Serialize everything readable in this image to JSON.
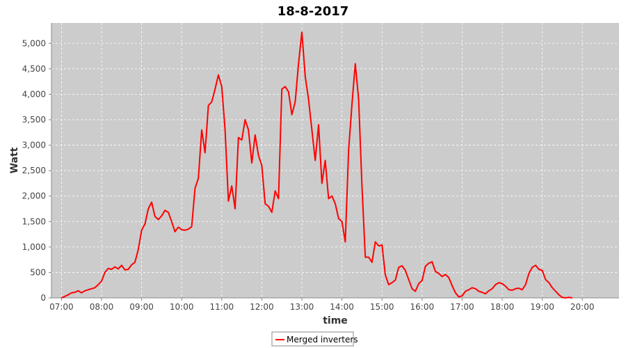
{
  "chart_data": {
    "type": "line",
    "title": "18-8-2017",
    "xlabel": "time",
    "ylabel": "Watt",
    "xlim": [
      "06:45",
      "20:55"
    ],
    "ylim": [
      0,
      5400
    ],
    "x_ticks": [
      "07:00",
      "08:00",
      "09:00",
      "10:00",
      "11:00",
      "12:00",
      "13:00",
      "14:00",
      "15:00",
      "16:00",
      "17:00",
      "18:00",
      "19:00",
      "20:00"
    ],
    "y_ticks": [
      0,
      500,
      1000,
      1500,
      2000,
      2500,
      3000,
      3500,
      4000,
      4500,
      5000
    ],
    "y_tick_labels": [
      "0",
      "500",
      "1,000",
      "1,500",
      "2,000",
      "2,500",
      "3,000",
      "3,500",
      "4,000",
      "4,500",
      "5,000"
    ],
    "grid": true,
    "legend_position": "bottom-center",
    "colors": {
      "series": "#ff0000",
      "plot_background": "#cccccc",
      "grid": "#ffffff"
    },
    "series": [
      {
        "name": "Merged inverters",
        "points": [
          [
            "07:00",
            0
          ],
          [
            "07:05",
            30
          ],
          [
            "07:10",
            60
          ],
          [
            "07:15",
            100
          ],
          [
            "07:20",
            110
          ],
          [
            "07:25",
            140
          ],
          [
            "07:30",
            100
          ],
          [
            "07:35",
            140
          ],
          [
            "07:40",
            160
          ],
          [
            "07:45",
            180
          ],
          [
            "07:50",
            200
          ],
          [
            "07:55",
            260
          ],
          [
            "08:00",
            330
          ],
          [
            "08:05",
            500
          ],
          [
            "08:10",
            580
          ],
          [
            "08:15",
            560
          ],
          [
            "08:20",
            610
          ],
          [
            "08:25",
            570
          ],
          [
            "08:30",
            640
          ],
          [
            "08:35",
            550
          ],
          [
            "08:40",
            560
          ],
          [
            "08:45",
            650
          ],
          [
            "08:50",
            700
          ],
          [
            "08:55",
            950
          ],
          [
            "09:00",
            1330
          ],
          [
            "09:05",
            1450
          ],
          [
            "09:10",
            1750
          ],
          [
            "09:15",
            1880
          ],
          [
            "09:20",
            1600
          ],
          [
            "09:25",
            1540
          ],
          [
            "09:30",
            1610
          ],
          [
            "09:35",
            1720
          ],
          [
            "09:40",
            1680
          ],
          [
            "09:45",
            1500
          ],
          [
            "09:50",
            1300
          ],
          [
            "09:55",
            1390
          ],
          [
            "10:00",
            1340
          ],
          [
            "10:05",
            1330
          ],
          [
            "10:10",
            1350
          ],
          [
            "10:15",
            1400
          ],
          [
            "10:20",
            2150
          ],
          [
            "10:25",
            2350
          ],
          [
            "10:30",
            3300
          ],
          [
            "10:35",
            2850
          ],
          [
            "10:40",
            3780
          ],
          [
            "10:45",
            3850
          ],
          [
            "10:50",
            4100
          ],
          [
            "10:55",
            4380
          ],
          [
            "11:00",
            4150
          ],
          [
            "11:05",
            3300
          ],
          [
            "11:10",
            1900
          ],
          [
            "11:15",
            2200
          ],
          [
            "11:20",
            1750
          ],
          [
            "11:25",
            3150
          ],
          [
            "11:30",
            3100
          ],
          [
            "11:35",
            3500
          ],
          [
            "11:40",
            3300
          ],
          [
            "11:45",
            2650
          ],
          [
            "11:50",
            3200
          ],
          [
            "11:55",
            2800
          ],
          [
            "12:00",
            2600
          ],
          [
            "12:05",
            1850
          ],
          [
            "12:10",
            1800
          ],
          [
            "12:15",
            1680
          ],
          [
            "12:20",
            2100
          ],
          [
            "12:25",
            1950
          ],
          [
            "12:30",
            4100
          ],
          [
            "12:35",
            4150
          ],
          [
            "12:40",
            4050
          ],
          [
            "12:45",
            3600
          ],
          [
            "12:50",
            3850
          ],
          [
            "12:55",
            4600
          ],
          [
            "13:00",
            5220
          ],
          [
            "13:05",
            4350
          ],
          [
            "13:10",
            3900
          ],
          [
            "13:15",
            3300
          ],
          [
            "13:20",
            2700
          ],
          [
            "13:25",
            3400
          ],
          [
            "13:30",
            2250
          ],
          [
            "13:35",
            2700
          ],
          [
            "13:40",
            1950
          ],
          [
            "13:45",
            2000
          ],
          [
            "13:50",
            1850
          ],
          [
            "13:55",
            1560
          ],
          [
            "14:00",
            1500
          ],
          [
            "14:05",
            1100
          ],
          [
            "14:10",
            2900
          ],
          [
            "14:15",
            3800
          ],
          [
            "14:20",
            4600
          ],
          [
            "14:25",
            3900
          ],
          [
            "14:30",
            2200
          ],
          [
            "14:35",
            800
          ],
          [
            "14:40",
            800
          ],
          [
            "14:45",
            700
          ],
          [
            "14:50",
            1100
          ],
          [
            "14:55",
            1020
          ],
          [
            "15:00",
            1040
          ],
          [
            "15:05",
            450
          ],
          [
            "15:10",
            260
          ],
          [
            "15:15",
            300
          ],
          [
            "15:20",
            350
          ],
          [
            "15:25",
            600
          ],
          [
            "15:30",
            630
          ],
          [
            "15:35",
            540
          ],
          [
            "15:40",
            360
          ],
          [
            "15:45",
            180
          ],
          [
            "15:50",
            130
          ],
          [
            "15:55",
            280
          ],
          [
            "16:00",
            340
          ],
          [
            "16:05",
            620
          ],
          [
            "16:10",
            680
          ],
          [
            "16:15",
            710
          ],
          [
            "16:20",
            520
          ],
          [
            "16:25",
            480
          ],
          [
            "16:30",
            420
          ],
          [
            "16:35",
            460
          ],
          [
            "16:40",
            400
          ],
          [
            "16:45",
            240
          ],
          [
            "16:50",
            100
          ],
          [
            "16:55",
            20
          ],
          [
            "17:00",
            40
          ],
          [
            "17:05",
            130
          ],
          [
            "17:10",
            160
          ],
          [
            "17:15",
            200
          ],
          [
            "17:20",
            180
          ],
          [
            "17:25",
            130
          ],
          [
            "17:30",
            110
          ],
          [
            "17:35",
            80
          ],
          [
            "17:40",
            140
          ],
          [
            "17:45",
            180
          ],
          [
            "17:50",
            260
          ],
          [
            "17:55",
            300
          ],
          [
            "18:00",
            280
          ],
          [
            "18:05",
            230
          ],
          [
            "18:10",
            160
          ],
          [
            "18:15",
            150
          ],
          [
            "18:20",
            180
          ],
          [
            "18:25",
            190
          ],
          [
            "18:30",
            160
          ],
          [
            "18:35",
            260
          ],
          [
            "18:40",
            480
          ],
          [
            "18:45",
            600
          ],
          [
            "18:50",
            640
          ],
          [
            "18:55",
            560
          ],
          [
            "19:00",
            540
          ],
          [
            "19:05",
            360
          ],
          [
            "19:10",
            300
          ],
          [
            "19:15",
            200
          ],
          [
            "19:20",
            130
          ],
          [
            "19:25",
            60
          ],
          [
            "19:30",
            10
          ],
          [
            "19:35",
            0
          ],
          [
            "19:40",
            10
          ],
          [
            "19:45",
            0
          ]
        ]
      }
    ]
  }
}
